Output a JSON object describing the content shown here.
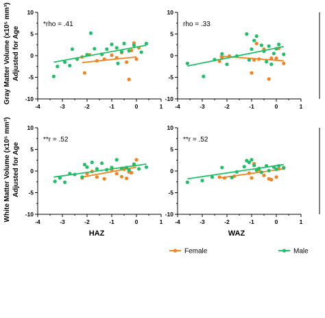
{
  "colors": {
    "female": "#f28320",
    "male": "#1fbf6a",
    "axis": "#000000"
  },
  "axes": {
    "xlabels": [
      "HAZ",
      "WAZ"
    ],
    "ylabels": [
      [
        "Gray Matter Volume (x10⁵ mm³)",
        "Adjusted for Age"
      ],
      [
        "White Matter Volume (x10⁵ mm³)",
        "Adjusted for Age"
      ]
    ]
  },
  "legend": {
    "female": "Female",
    "male": "Male"
  },
  "chart_data": [
    {
      "type": "scatter",
      "panel": "gray-haz",
      "annotation": "*rho = .41",
      "xlim": [
        -4,
        1
      ],
      "ylim": [
        -10,
        10
      ],
      "xticks": [
        -4,
        -3,
        -2,
        -1,
        0,
        1
      ],
      "yticks": [
        -10,
        -5,
        0,
        5,
        10
      ],
      "series": [
        {
          "name": "Female",
          "points": [
            [
              -2.2,
              -0.3
            ],
            [
              -2.1,
              -4.0
            ],
            [
              -1.9,
              0.2
            ],
            [
              -1.6,
              -1.2
            ],
            [
              -1.3,
              -0.8
            ],
            [
              -1.0,
              0.1
            ],
            [
              -0.8,
              -0.5
            ],
            [
              -0.6,
              0.7
            ],
            [
              -0.4,
              -1.5
            ],
            [
              -0.3,
              -5.5
            ],
            [
              -0.2,
              1.2
            ],
            [
              -0.1,
              2.9
            ],
            [
              0.0,
              -0.8
            ],
            [
              0.1,
              1.8
            ]
          ],
          "fit": [
            [
              -2.2,
              -1.6
            ],
            [
              0.0,
              -0.3
            ]
          ]
        },
        {
          "name": "Male",
          "points": [
            [
              -3.35,
              -4.8
            ],
            [
              -3.2,
              -2.5
            ],
            [
              -2.9,
              -1.5
            ],
            [
              -2.6,
              1.5
            ],
            [
              -2.4,
              -0.8
            ],
            [
              -2.0,
              0.2
            ],
            [
              -1.85,
              5.2
            ],
            [
              -1.7,
              1.6
            ],
            [
              -1.4,
              0.3
            ],
            [
              -1.2,
              1.5
            ],
            [
              -1.0,
              2.6
            ],
            [
              -0.8,
              1.8
            ],
            [
              -0.6,
              0.9
            ],
            [
              -0.5,
              2.8
            ],
            [
              -0.3,
              1.1
            ],
            [
              -0.1,
              2.4
            ],
            [
              0.2,
              0.8
            ],
            [
              0.4,
              2.8
            ],
            [
              -2.7,
              -2.3
            ],
            [
              -0.75,
              -1.8
            ]
          ],
          "fit": [
            [
              -3.35,
              -1.5
            ],
            [
              0.4,
              2.4
            ]
          ]
        }
      ]
    },
    {
      "type": "scatter",
      "panel": "gray-waz",
      "annotation": "rho = .33",
      "xlim": [
        -4,
        1
      ],
      "ylim": [
        -10,
        10
      ],
      "xticks": [
        -4,
        -3,
        -2,
        -1,
        0,
        1
      ],
      "yticks": [
        -10,
        -5,
        0,
        5,
        10
      ],
      "series": [
        {
          "name": "Female",
          "points": [
            [
              -2.3,
              -1.3
            ],
            [
              -2.2,
              -0.5
            ],
            [
              -1.9,
              -0.1
            ],
            [
              -1.0,
              -4.0
            ],
            [
              -0.9,
              -1.0
            ],
            [
              -0.8,
              2.8
            ],
            [
              -0.7,
              -0.8
            ],
            [
              -0.5,
              1.5
            ],
            [
              -0.3,
              -5.4
            ],
            [
              -0.2,
              -0.6
            ],
            [
              0.0,
              -0.6
            ],
            [
              0.1,
              1.7
            ],
            [
              0.3,
              -1.8
            ]
          ],
          "fit": [
            [
              -2.3,
              -0.1
            ],
            [
              0.3,
              -1.2
            ]
          ]
        },
        {
          "name": "Male",
          "points": [
            [
              -3.6,
              -1.8
            ],
            [
              -2.95,
              -4.8
            ],
            [
              -2.5,
              -0.9
            ],
            [
              -2.2,
              0.4
            ],
            [
              -2.0,
              -2.0
            ],
            [
              -1.6,
              -0.1
            ],
            [
              -1.2,
              5.0
            ],
            [
              -1.0,
              1.5
            ],
            [
              -0.9,
              3.5
            ],
            [
              -0.8,
              4.5
            ],
            [
              -0.6,
              2.4
            ],
            [
              -0.5,
              1.0
            ],
            [
              -0.4,
              -1.4
            ],
            [
              -0.3,
              2.2
            ],
            [
              -0.1,
              0.5
            ],
            [
              0.0,
              1.6
            ],
            [
              0.1,
              2.6
            ],
            [
              0.3,
              0.3
            ],
            [
              -1.1,
              -1.0
            ],
            [
              -0.2,
              -2.0
            ]
          ],
          "fit": [
            [
              -3.6,
              -2.4
            ],
            [
              0.3,
              2.1
            ]
          ]
        }
      ]
    },
    {
      "type": "scatter",
      "panel": "white-haz",
      "annotation": "**r = .52",
      "xlim": [
        -4,
        1
      ],
      "ylim": [
        -10,
        10
      ],
      "xticks": [
        -4,
        -3,
        -2,
        -1,
        0,
        1
      ],
      "yticks": [
        -10,
        -5,
        0,
        5,
        10
      ],
      "series": [
        {
          "name": "Female",
          "points": [
            [
              -2.2,
              -1.6
            ],
            [
              -2.0,
              -0.6
            ],
            [
              -1.8,
              -0.1
            ],
            [
              -1.6,
              -1.4
            ],
            [
              -1.3,
              -1.8
            ],
            [
              -1.0,
              0.3
            ],
            [
              -0.8,
              -0.6
            ],
            [
              -0.6,
              -1.3
            ],
            [
              -0.5,
              0.4
            ],
            [
              -0.4,
              -1.7
            ],
            [
              -0.2,
              -0.4
            ],
            [
              -0.1,
              1.4
            ],
            [
              0.0,
              2.6
            ],
            [
              -0.3,
              -0.2
            ]
          ],
          "fit": [
            [
              -2.2,
              -1.4
            ],
            [
              0.0,
              0.9
            ]
          ]
        },
        {
          "name": "Male",
          "points": [
            [
              -3.3,
              -2.4
            ],
            [
              -3.1,
              -1.6
            ],
            [
              -2.9,
              -2.6
            ],
            [
              -2.7,
              -0.6
            ],
            [
              -2.5,
              -0.8
            ],
            [
              -2.1,
              1.5
            ],
            [
              -2.0,
              0.9
            ],
            [
              -1.8,
              2.0
            ],
            [
              -1.6,
              0.5
            ],
            [
              -1.4,
              1.8
            ],
            [
              -1.2,
              0.3
            ],
            [
              -1.0,
              0.8
            ],
            [
              -0.8,
              2.6
            ],
            [
              -0.6,
              0.6
            ],
            [
              -0.4,
              0.8
            ],
            [
              -0.3,
              0.2
            ],
            [
              -0.1,
              1.6
            ],
            [
              0.1,
              0.5
            ],
            [
              0.4,
              0.9
            ],
            [
              -2.2,
              -1.4
            ]
          ],
          "fit": [
            [
              -3.35,
              -1.4
            ],
            [
              0.4,
              1.6
            ]
          ]
        }
      ]
    },
    {
      "type": "scatter",
      "panel": "white-waz",
      "annotation": "**r = .52",
      "xlim": [
        -4,
        1
      ],
      "ylim": [
        -10,
        10
      ],
      "xticks": [
        -4,
        -3,
        -2,
        -1,
        0,
        1
      ],
      "yticks": [
        -10,
        -5,
        0,
        5,
        10
      ],
      "series": [
        {
          "name": "Female",
          "points": [
            [
              -2.3,
              -1.4
            ],
            [
              -2.1,
              -1.6
            ],
            [
              -1.7,
              -1.2
            ],
            [
              -1.1,
              -0.5
            ],
            [
              -1.0,
              -1.6
            ],
            [
              -0.9,
              1.7
            ],
            [
              -0.7,
              0.3
            ],
            [
              -0.5,
              -1.0
            ],
            [
              -0.3,
              -1.8
            ],
            [
              -0.2,
              -2.0
            ],
            [
              0.0,
              -1.4
            ],
            [
              0.1,
              0.5
            ],
            [
              0.3,
              0.8
            ]
          ],
          "fit": [
            [
              -2.3,
              -1.6
            ],
            [
              0.3,
              0.5
            ]
          ]
        },
        {
          "name": "Male",
          "points": [
            [
              -3.6,
              -2.6
            ],
            [
              -3.0,
              -2.2
            ],
            [
              -2.6,
              -1.4
            ],
            [
              -2.2,
              0.8
            ],
            [
              -1.8,
              -1.5
            ],
            [
              -1.6,
              -0.2
            ],
            [
              -1.3,
              1.0
            ],
            [
              -1.1,
              2.0
            ],
            [
              -1.0,
              2.6
            ],
            [
              -0.9,
              1.3
            ],
            [
              -0.7,
              0.6
            ],
            [
              -0.6,
              -0.3
            ],
            [
              -0.4,
              1.2
            ],
            [
              -0.3,
              0.1
            ],
            [
              -0.1,
              0.9
            ],
            [
              0.0,
              0.4
            ],
            [
              0.1,
              1.2
            ],
            [
              0.3,
              0.7
            ],
            [
              -1.2,
              2.4
            ],
            [
              -0.8,
              0.2
            ]
          ],
          "fit": [
            [
              -3.6,
              -1.8
            ],
            [
              0.3,
              1.5
            ]
          ]
        }
      ]
    }
  ]
}
